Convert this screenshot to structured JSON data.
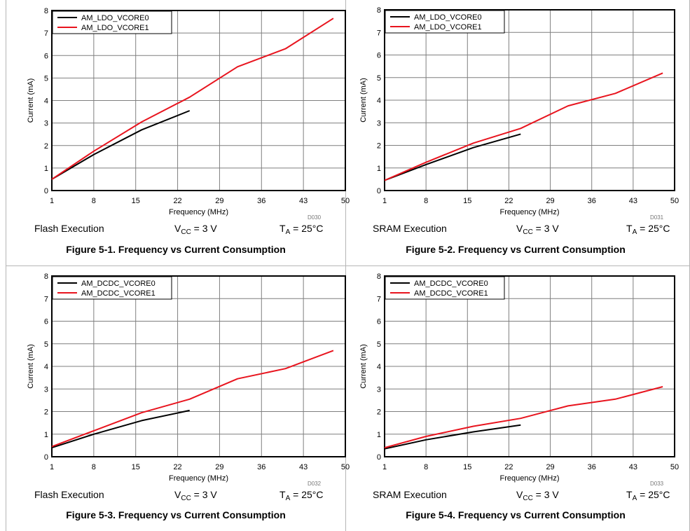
{
  "common": {
    "xlabel": "Frequency (MHz)",
    "ylabel": "Current (mA)",
    "vcc_prefix": "V",
    "vcc_sub": "CC",
    "vcc_value": " = 3 V",
    "ta_prefix": "T",
    "ta_sub": "A",
    "ta_value": " = 25°C",
    "colors": {
      "series0": "#000000",
      "series1": "#e8141e",
      "grid": "#7f7f7f"
    }
  },
  "panels": [
    {
      "execution": "Flash Execution",
      "code": "D030",
      "figure_title": "Figure 5-1. Frequency vs Current Consumption"
    },
    {
      "execution": "SRAM Execution",
      "code": "D031",
      "figure_title": "Figure 5-2. Frequency vs Current Consumption"
    },
    {
      "execution": "Flash Execution",
      "code": "D032",
      "figure_title": "Figure 5-3. Frequency vs Current Consumption"
    },
    {
      "execution": "SRAM Execution",
      "code": "D033",
      "figure_title": "Figure 5-4. Frequency vs Current Consumption"
    }
  ],
  "chart_data": [
    {
      "type": "line",
      "xlabel": "Frequency (MHz)",
      "ylabel": "Current (mA)",
      "xticks": [
        1,
        8,
        15,
        22,
        29,
        36,
        43,
        50
      ],
      "xlim": [
        1,
        50
      ],
      "yticks": [
        0,
        1,
        2,
        3,
        4,
        5,
        6,
        7,
        8
      ],
      "ylim": [
        0,
        8
      ],
      "grid": true,
      "legend": "top-left",
      "series": [
        {
          "name": "AM_LDO_VCORE0",
          "x": [
            1,
            8,
            16,
            24
          ],
          "y": [
            0.5,
            1.6,
            2.7,
            3.55
          ]
        },
        {
          "name": "AM_LDO_VCORE1",
          "x": [
            1,
            8,
            16,
            24,
            32,
            40,
            48
          ],
          "y": [
            0.5,
            1.75,
            3.05,
            4.15,
            5.5,
            6.3,
            7.65
          ]
        }
      ]
    },
    {
      "type": "line",
      "xlabel": "Frequency (MHz)",
      "ylabel": "Current (mA)",
      "xticks": [
        1,
        8,
        15,
        22,
        29,
        36,
        43,
        50
      ],
      "xlim": [
        1,
        50
      ],
      "yticks": [
        0,
        1,
        2,
        3,
        4,
        5,
        6,
        7,
        8
      ],
      "ylim": [
        0,
        8
      ],
      "grid": true,
      "legend": "top-left",
      "series": [
        {
          "name": "AM_LDO_VCORE0",
          "x": [
            1,
            8,
            16,
            24
          ],
          "y": [
            0.45,
            1.15,
            1.9,
            2.5
          ]
        },
        {
          "name": "AM_LDO_VCORE1",
          "x": [
            1,
            8,
            16,
            24,
            32,
            40,
            48
          ],
          "y": [
            0.45,
            1.25,
            2.1,
            2.75,
            3.75,
            4.3,
            5.2
          ]
        }
      ]
    },
    {
      "type": "line",
      "xlabel": "Frequency (MHz)",
      "ylabel": "Current (mA)",
      "xticks": [
        1,
        8,
        15,
        22,
        29,
        36,
        43,
        50
      ],
      "xlim": [
        1,
        50
      ],
      "yticks": [
        0,
        1,
        2,
        3,
        4,
        5,
        6,
        7,
        8
      ],
      "ylim": [
        0,
        8
      ],
      "grid": true,
      "legend": "top-left",
      "series": [
        {
          "name": "AM_DCDC_VCORE0",
          "x": [
            1,
            8,
            16,
            24
          ],
          "y": [
            0.4,
            1.0,
            1.6,
            2.05
          ]
        },
        {
          "name": "AM_DCDC_VCORE1",
          "x": [
            1,
            8,
            16,
            24,
            32,
            40,
            48
          ],
          "y": [
            0.45,
            1.15,
            1.95,
            2.55,
            3.45,
            3.9,
            4.7
          ]
        }
      ]
    },
    {
      "type": "line",
      "xlabel": "Frequency (MHz)",
      "ylabel": "Current (mA)",
      "xticks": [
        1,
        8,
        15,
        22,
        29,
        36,
        43,
        50
      ],
      "xlim": [
        1,
        50
      ],
      "yticks": [
        0,
        1,
        2,
        3,
        4,
        5,
        6,
        7,
        8
      ],
      "ylim": [
        0,
        8
      ],
      "grid": true,
      "legend": "top-left",
      "series": [
        {
          "name": "AM_DCDC_VCORE0",
          "x": [
            1,
            8,
            16,
            24
          ],
          "y": [
            0.35,
            0.75,
            1.1,
            1.4
          ]
        },
        {
          "name": "AM_DCDC_VCORE1",
          "x": [
            1,
            8,
            16,
            24,
            32,
            40,
            48
          ],
          "y": [
            0.4,
            0.9,
            1.35,
            1.7,
            2.25,
            2.55,
            3.1
          ]
        }
      ]
    }
  ]
}
